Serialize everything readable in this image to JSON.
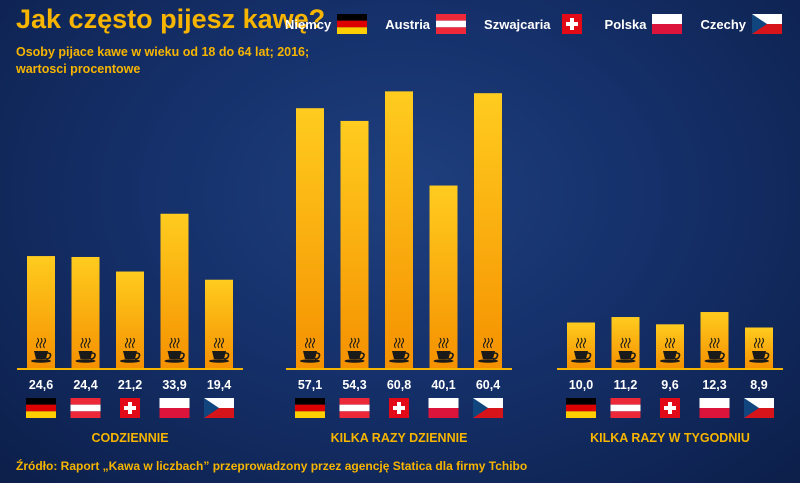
{
  "title": "Jak często pijesz kawę?",
  "subtitle": "Osoby pijace kawe w wieku od 18 do 64 lat; 2016; wartosci procentowe",
  "source": "Źródło: Raport „Kawa w liczbach” przeprowadzony przez agencję Statica dla firmy Tchibo",
  "legend": [
    {
      "label": "Niemcy",
      "flag": "germany-flag"
    },
    {
      "label": "Austria",
      "flag": "austria-flag"
    },
    {
      "label": "Szwajcaria",
      "flag": "switzerland-flag"
    },
    {
      "label": "Polska",
      "flag": "poland-flag"
    },
    {
      "label": "Czechy",
      "flag": "czech-flag"
    }
  ],
  "colors": {
    "accent": "#f7b500",
    "bar_top": "#ffcc1f",
    "bar_bottom": "#f59100",
    "background": "#15306a"
  },
  "chart_data": {
    "type": "bar",
    "categories": [
      "CODZIENNIE",
      "KILKA RAZY DZIENNIE",
      "KILKA RAZY W TYGODNIU"
    ],
    "series": [
      {
        "name": "Niemcy",
        "values": [
          24.6,
          57.1,
          10.0
        ],
        "labels": [
          "24,6",
          "57,1",
          "10,0"
        ]
      },
      {
        "name": "Austria",
        "values": [
          24.4,
          54.3,
          11.2
        ],
        "labels": [
          "24,4",
          "54,3",
          "11,2"
        ]
      },
      {
        "name": "Szwajcaria",
        "values": [
          21.2,
          60.8,
          9.6
        ],
        "labels": [
          "21,2",
          "60,8",
          "9,6"
        ]
      },
      {
        "name": "Polska",
        "values": [
          33.9,
          40.1,
          12.3
        ],
        "labels": [
          "33,9",
          "40,1",
          "12,3"
        ]
      },
      {
        "name": "Czechy",
        "values": [
          19.4,
          60.4,
          8.9
        ],
        "labels": [
          "19,4",
          "60,4",
          "8,9"
        ]
      }
    ],
    "ylim": [
      0,
      65
    ],
    "grid": false,
    "legend_position": "top-right",
    "bar_icon": "coffee-cup-icon"
  }
}
